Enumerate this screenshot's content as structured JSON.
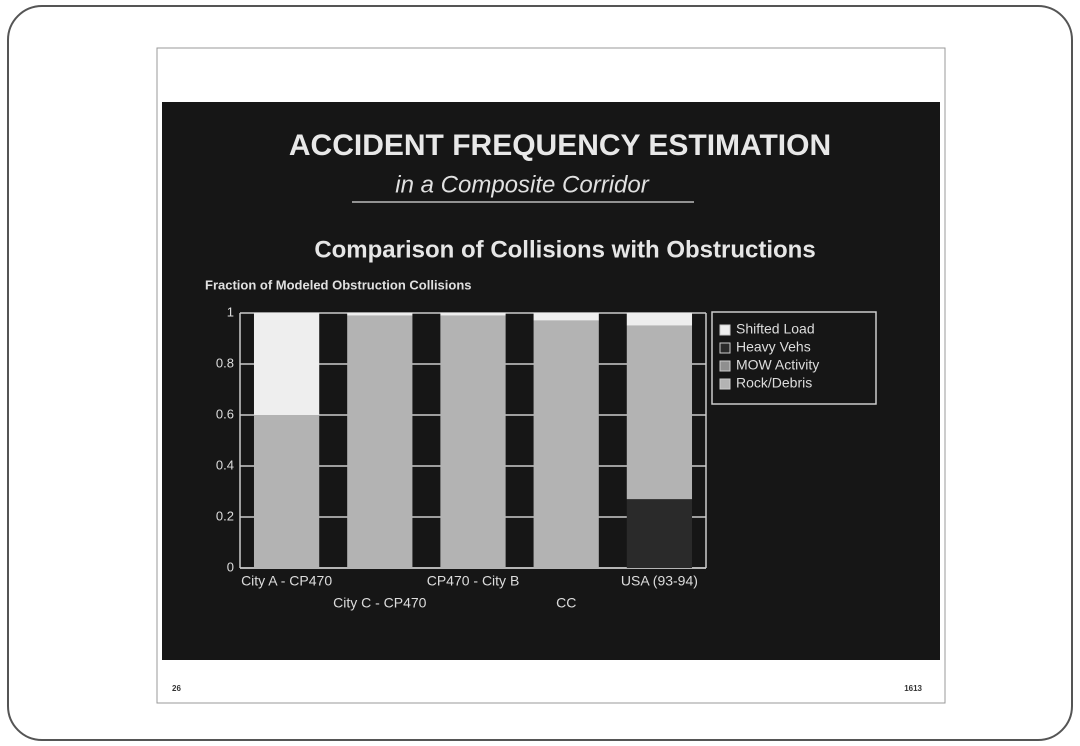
{
  "chart_data": {
    "type": "stacked-bar",
    "title": "ACCIDENT FREQUENCY ESTIMATION",
    "subtitle": "in a Composite Corridor",
    "chart_title": "Comparison of Collisions with Obstructions",
    "y_label": "Fraction of Modeled Obstruction Collisions",
    "categories": [
      "City A - CP470",
      "City C - CP470",
      "CP470 - City B",
      "CC",
      "USA (93-94)"
    ],
    "series": [
      {
        "name": "Heavy Vehs",
        "color": "#2a2a2a",
        "values": [
          0,
          0,
          0,
          0,
          0.27
        ]
      },
      {
        "name": "Rock/Debris",
        "color": "#b3b3b3",
        "values": [
          0.6,
          0.99,
          0.99,
          0.97,
          0.68
        ]
      },
      {
        "name": "MOW Activity",
        "color": "#8f8f8f",
        "values": [
          0,
          0,
          0,
          0,
          0
        ]
      },
      {
        "name": "Shifted Load",
        "color": "#eeeeee",
        "values": [
          0.4,
          0.01,
          0.01,
          0.03,
          0.05
        ]
      }
    ],
    "legend_order": [
      3,
      0,
      2,
      1
    ],
    "ylim": [
      0,
      1
    ],
    "yticks": [
      0,
      0.2,
      0.4,
      0.6,
      0.8,
      1
    ],
    "grid": true,
    "legend": "right"
  },
  "page": {
    "page_number": "26",
    "document_number": "1613"
  }
}
